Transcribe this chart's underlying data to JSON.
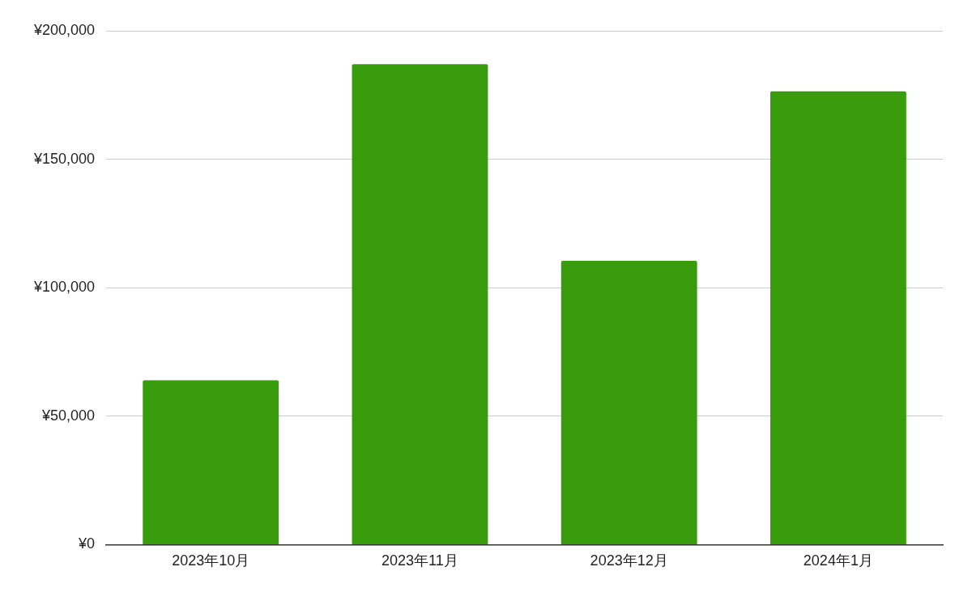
{
  "chart_data": {
    "type": "bar",
    "categories": [
      "2023年10月",
      "2023年11月",
      "2023年12月",
      "2024年1月"
    ],
    "values": [
      64000,
      187000,
      110500,
      176400
    ],
    "color": "#389c0c",
    "ylim": [
      0,
      200000
    ],
    "yticks": [
      {
        "value": 0,
        "label": "¥0"
      },
      {
        "value": 50000,
        "label": "¥50,000"
      },
      {
        "value": 100000,
        "label": "¥100,000"
      },
      {
        "value": 150000,
        "label": "¥150,000"
      },
      {
        "value": 200000,
        "label": "¥200,000"
      }
    ],
    "grid": "y",
    "legend": false
  }
}
